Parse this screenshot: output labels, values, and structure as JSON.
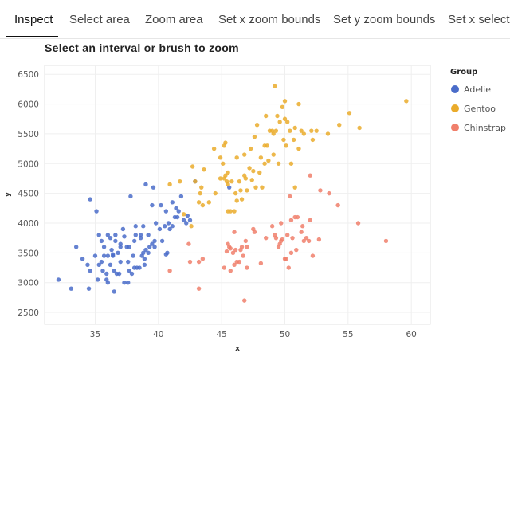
{
  "tabs": [
    {
      "label": "Inspect",
      "active": true
    },
    {
      "label": "Select area",
      "active": false
    },
    {
      "label": "Zoom area",
      "active": false
    },
    {
      "label": "Set x zoom bounds",
      "active": false
    },
    {
      "label": "Set y zoom bounds",
      "active": false
    },
    {
      "label": "Set x selection",
      "active": false
    }
  ],
  "chart_data": {
    "type": "scatter",
    "title": "Select an interval or brush to zoom",
    "xlabel": "x",
    "ylabel": "y",
    "xlim": [
      31,
      61.5
    ],
    "ylim": [
      2300,
      6650
    ],
    "xticks": [
      35,
      40,
      45,
      50,
      55,
      60
    ],
    "yticks": [
      2500,
      3000,
      3500,
      4000,
      4500,
      5000,
      5500,
      6000,
      6500
    ],
    "grid": true,
    "legend": {
      "title": "Group",
      "position": "right"
    },
    "series": [
      {
        "name": "Adelie",
        "color": "#4a6cc9",
        "points": [
          [
            32.1,
            3050
          ],
          [
            33.1,
            2900
          ],
          [
            33.5,
            3600
          ],
          [
            34.0,
            3400
          ],
          [
            34.4,
            3300
          ],
          [
            34.5,
            2900
          ],
          [
            34.6,
            4400
          ],
          [
            34.6,
            3200
          ],
          [
            35.0,
            3450
          ],
          [
            35.1,
            4200
          ],
          [
            35.2,
            3050
          ],
          [
            35.3,
            3800
          ],
          [
            35.3,
            3300
          ],
          [
            35.5,
            3700
          ],
          [
            35.5,
            3350
          ],
          [
            35.6,
            3200
          ],
          [
            35.7,
            3600
          ],
          [
            35.9,
            3050
          ],
          [
            35.9,
            3150
          ],
          [
            36.0,
            3800
          ],
          [
            36.0,
            3450
          ],
          [
            36.0,
            3000
          ],
          [
            36.2,
            3300
          ],
          [
            36.2,
            3750
          ],
          [
            36.3,
            3550
          ],
          [
            36.4,
            3450
          ],
          [
            36.5,
            3200
          ],
          [
            36.5,
            2850
          ],
          [
            36.6,
            3800
          ],
          [
            36.6,
            3700
          ],
          [
            36.7,
            3150
          ],
          [
            36.8,
            3500
          ],
          [
            36.9,
            3150
          ],
          [
            37.0,
            3600
          ],
          [
            37.0,
            3350
          ],
          [
            37.2,
            3900
          ],
          [
            37.3,
            3775
          ],
          [
            37.3,
            3000
          ],
          [
            37.5,
            3600
          ],
          [
            37.6,
            3000
          ],
          [
            37.7,
            3600
          ],
          [
            37.7,
            3200
          ],
          [
            37.8,
            4450
          ],
          [
            37.9,
            3150
          ],
          [
            38.1,
            3250
          ],
          [
            38.1,
            3700
          ],
          [
            38.2,
            3800
          ],
          [
            38.2,
            3950
          ],
          [
            38.3,
            3250
          ],
          [
            38.6,
            3800
          ],
          [
            38.6,
            3750
          ],
          [
            38.7,
            3450
          ],
          [
            38.8,
            3500
          ],
          [
            38.8,
            3950
          ],
          [
            38.9,
            3400
          ],
          [
            39.0,
            3550
          ],
          [
            39.0,
            4650
          ],
          [
            39.2,
            3500
          ],
          [
            39.2,
            3800
          ],
          [
            39.3,
            3600
          ],
          [
            39.5,
            4300
          ],
          [
            39.5,
            3650
          ],
          [
            39.6,
            4600
          ],
          [
            39.7,
            3600
          ],
          [
            39.8,
            4000
          ],
          [
            40.1,
            3900
          ],
          [
            40.2,
            4300
          ],
          [
            40.3,
            3700
          ],
          [
            40.5,
            3950
          ],
          [
            40.6,
            4200
          ],
          [
            40.7,
            3500
          ],
          [
            40.8,
            4000
          ],
          [
            40.9,
            3900
          ],
          [
            41.1,
            4350
          ],
          [
            41.1,
            3950
          ],
          [
            41.3,
            4100
          ],
          [
            41.4,
            4250
          ],
          [
            41.5,
            4100
          ],
          [
            41.6,
            4200
          ],
          [
            41.8,
            4450
          ],
          [
            42.0,
            4050
          ],
          [
            42.2,
            4000
          ],
          [
            42.3,
            4125
          ],
          [
            42.5,
            4050
          ],
          [
            42.9,
            4700
          ],
          [
            45.6,
            4600
          ],
          [
            36.4,
            3475
          ],
          [
            37.6,
            3350
          ],
          [
            38.0,
            3450
          ],
          [
            38.5,
            3250
          ],
          [
            39.7,
            3700
          ],
          [
            40.6,
            3475
          ],
          [
            35.7,
            3450
          ],
          [
            37.0,
            3650
          ],
          [
            38.9,
            3300
          ]
        ]
      },
      {
        "name": "Gentoo",
        "color": "#eaab2b",
        "points": [
          [
            40.9,
            4650
          ],
          [
            41.7,
            4700
          ],
          [
            42.0,
            4150
          ],
          [
            42.6,
            3950
          ],
          [
            42.7,
            4950
          ],
          [
            42.9,
            4700
          ],
          [
            43.2,
            4350
          ],
          [
            43.3,
            4500
          ],
          [
            43.4,
            4600
          ],
          [
            43.6,
            4900
          ],
          [
            44.0,
            4350
          ],
          [
            44.4,
            5250
          ],
          [
            44.5,
            4500
          ],
          [
            44.9,
            5100
          ],
          [
            45.1,
            5000
          ],
          [
            45.2,
            4750
          ],
          [
            45.2,
            5300
          ],
          [
            45.3,
            4800
          ],
          [
            45.4,
            4700
          ],
          [
            45.5,
            4200
          ],
          [
            45.5,
            4650
          ],
          [
            45.7,
            4200
          ],
          [
            45.8,
            4700
          ],
          [
            46.1,
            4500
          ],
          [
            46.2,
            4375
          ],
          [
            46.2,
            5100
          ],
          [
            46.4,
            4700
          ],
          [
            46.5,
            4550
          ],
          [
            46.6,
            4400
          ],
          [
            46.8,
            4800
          ],
          [
            46.8,
            5150
          ],
          [
            46.9,
            4750
          ],
          [
            47.2,
            4925
          ],
          [
            47.3,
            5250
          ],
          [
            47.4,
            4725
          ],
          [
            47.5,
            4875
          ],
          [
            47.7,
            4600
          ],
          [
            47.8,
            5650
          ],
          [
            48.1,
            5100
          ],
          [
            48.2,
            4600
          ],
          [
            48.4,
            5000
          ],
          [
            48.5,
            5800
          ],
          [
            48.6,
            5300
          ],
          [
            48.7,
            5050
          ],
          [
            48.8,
            5550
          ],
          [
            49.0,
            5550
          ],
          [
            49.1,
            5500
          ],
          [
            49.2,
            6300
          ],
          [
            49.3,
            5550
          ],
          [
            49.4,
            5800
          ],
          [
            49.5,
            5000
          ],
          [
            49.6,
            5700
          ],
          [
            49.8,
            5950
          ],
          [
            49.9,
            5400
          ],
          [
            50.0,
            5750
          ],
          [
            50.1,
            5300
          ],
          [
            50.2,
            5700
          ],
          [
            50.4,
            5550
          ],
          [
            50.5,
            5000
          ],
          [
            50.7,
            5400
          ],
          [
            50.8,
            5600
          ],
          [
            51.1,
            5250
          ],
          [
            51.3,
            5550
          ],
          [
            51.5,
            5500
          ],
          [
            52.1,
            5550
          ],
          [
            52.2,
            5400
          ],
          [
            52.5,
            5550
          ],
          [
            53.4,
            5500
          ],
          [
            54.3,
            5650
          ],
          [
            55.1,
            5850
          ],
          [
            59.6,
            6050
          ],
          [
            44.9,
            4750
          ],
          [
            46.0,
            4200
          ],
          [
            47.0,
            4550
          ],
          [
            48.0,
            4850
          ],
          [
            50.8,
            4600
          ],
          [
            45.3,
            5350
          ],
          [
            43.5,
            4300
          ],
          [
            49.1,
            5150
          ],
          [
            50.0,
            6050
          ],
          [
            51.1,
            6000
          ],
          [
            55.9,
            5600
          ],
          [
            48.4,
            5300
          ],
          [
            45.5,
            4850
          ],
          [
            47.6,
            5450
          ]
        ]
      },
      {
        "name": "Chinstrap",
        "color": "#f07f6b",
        "points": [
          [
            40.9,
            3200
          ],
          [
            42.4,
            3650
          ],
          [
            42.5,
            3350
          ],
          [
            43.2,
            2900
          ],
          [
            43.5,
            3400
          ],
          [
            45.2,
            3250
          ],
          [
            45.4,
            3525
          ],
          [
            45.5,
            3650
          ],
          [
            45.6,
            3600
          ],
          [
            45.7,
            3575
          ],
          [
            45.9,
            3500
          ],
          [
            46.0,
            3300
          ],
          [
            46.1,
            3550
          ],
          [
            46.2,
            3350
          ],
          [
            46.4,
            3350
          ],
          [
            46.5,
            3550
          ],
          [
            46.6,
            3600
          ],
          [
            46.7,
            3450
          ],
          [
            46.8,
            2700
          ],
          [
            46.9,
            3700
          ],
          [
            47.0,
            3600
          ],
          [
            47.5,
            3900
          ],
          [
            47.6,
            3850
          ],
          [
            48.1,
            3325
          ],
          [
            48.5,
            3750
          ],
          [
            49.0,
            3950
          ],
          [
            49.2,
            3800
          ],
          [
            49.3,
            3750
          ],
          [
            49.5,
            3600
          ],
          [
            49.7,
            3700
          ],
          [
            49.8,
            3725
          ],
          [
            50.0,
            3400
          ],
          [
            50.1,
            3400
          ],
          [
            50.2,
            3800
          ],
          [
            50.3,
            3250
          ],
          [
            50.5,
            4050
          ],
          [
            50.6,
            3750
          ],
          [
            50.8,
            4100
          ],
          [
            50.9,
            3550
          ],
          [
            51.0,
            4100
          ],
          [
            51.3,
            3850
          ],
          [
            51.4,
            3950
          ],
          [
            51.5,
            3700
          ],
          [
            51.7,
            3750
          ],
          [
            51.9,
            3700
          ],
          [
            52.0,
            4050
          ],
          [
            52.2,
            3450
          ],
          [
            52.7,
            3725
          ],
          [
            52.8,
            4550
          ],
          [
            53.5,
            4500
          ],
          [
            54.2,
            4300
          ],
          [
            55.8,
            4000
          ],
          [
            58.0,
            3700
          ],
          [
            49.7,
            4000
          ],
          [
            50.4,
            4450
          ],
          [
            52.0,
            4800
          ],
          [
            50.5,
            3500
          ],
          [
            49.6,
            3650
          ],
          [
            45.7,
            3200
          ],
          [
            46.0,
            3850
          ],
          [
            43.2,
            3350
          ],
          [
            47.0,
            3250
          ]
        ]
      }
    ]
  }
}
